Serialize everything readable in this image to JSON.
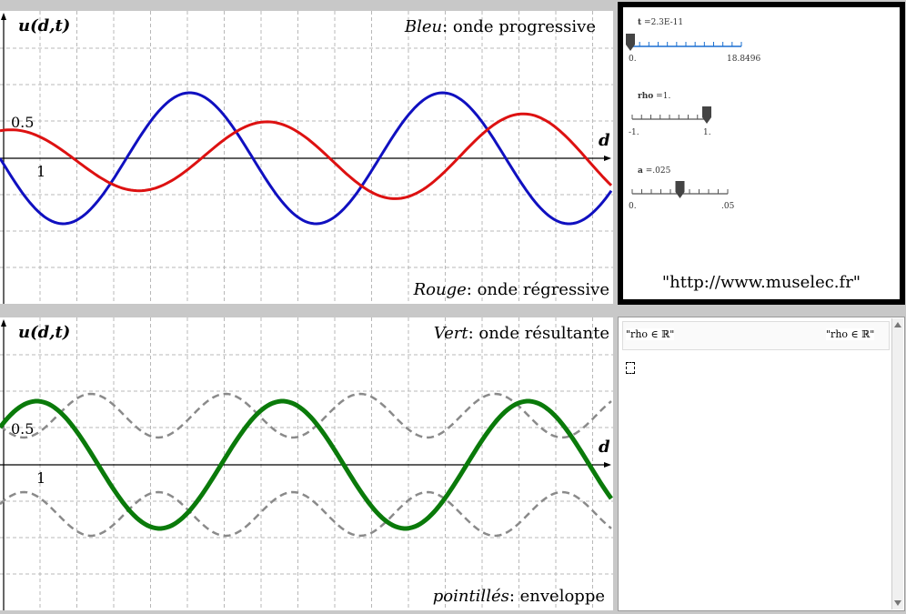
{
  "top_graph": {
    "ylabel": "u(d,t)",
    "xlabel": "d",
    "tick_y": "0.5",
    "tick_x": "1",
    "legend_blue_key": "Bleu",
    "legend_blue_text": ": onde progressive",
    "legend_red_key": "Rouge",
    "legend_red_text": ": onde régressive",
    "colors": {
      "blue": "#1010c0",
      "red": "#dd1111"
    }
  },
  "bottom_graph": {
    "ylabel": "u(d,t)",
    "xlabel": "d",
    "tick_y": "0.5",
    "tick_x": "1",
    "legend_green_key": "Vert",
    "legend_green_text": ": onde résultante",
    "legend_dotted_key": "pointillés",
    "legend_dotted_text": ": enveloppe",
    "colors": {
      "green": "#0a7a0a",
      "envelope": "#8a8a8a"
    }
  },
  "sliders": {
    "t": {
      "name": "t",
      "value": "=2.3E-11",
      "min": "0.",
      "max": "18.8496",
      "fraction": 0.0
    },
    "rho": {
      "name": "rho",
      "value": "=1.",
      "min": "-1.",
      "max": "1.",
      "fraction": 1.0
    },
    "a": {
      "name": "a",
      "value": "=.025",
      "min": "0.",
      "max": ".05",
      "fraction": 0.5
    }
  },
  "url": "\"http://www.muselec.fr\"",
  "notes": {
    "left_box": "\"rho ∈ ℝ\"",
    "right_box": "\"rho ∈ ℝ\""
  }
}
